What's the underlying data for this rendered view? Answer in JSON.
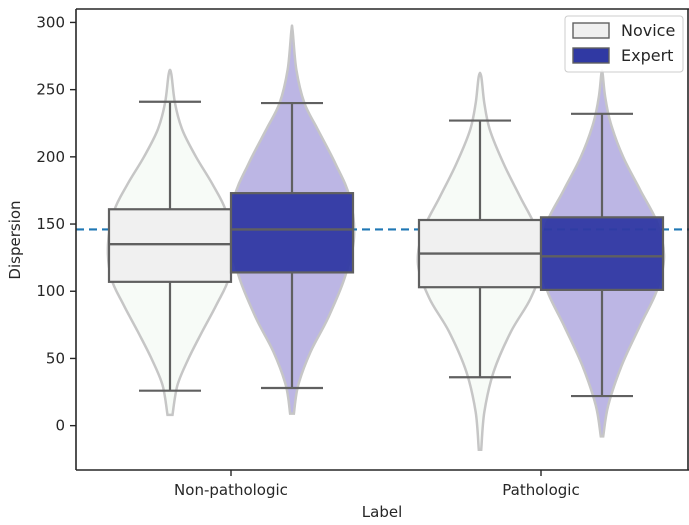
{
  "chart_data": {
    "type": "violin-box",
    "xlabel": "Label",
    "ylabel": "Dispersion",
    "categories": [
      "Non-pathologic",
      "Pathologic"
    ],
    "ylim": [
      -33,
      310
    ],
    "yticks": [
      0,
      50,
      100,
      150,
      200,
      250,
      300
    ],
    "reference_line": {
      "y": 146,
      "style": "dashed",
      "color": "#1f77b4"
    },
    "legend": {
      "position": "top-right",
      "entries": [
        "Novice",
        "Expert"
      ]
    },
    "colors": {
      "Novice_box": "#f0f0f0",
      "Novice_violin": "#f7fbf7",
      "Expert_box": "#3039a3",
      "Expert_violin": "#b8b2e3",
      "box_edge": "#606060",
      "violin_edge": "#c6c6c6"
    },
    "series": [
      {
        "name": "Novice",
        "groups": [
          {
            "category": "Non-pathologic",
            "box": {
              "whisker_low": 26,
              "q1": 107,
              "median": 135,
              "q3": 161,
              "whisker_high": 241
            },
            "violin": {
              "min": 8,
              "max": 262,
              "profile": [
                [
                  8,
                  0.04
                ],
                [
                  30,
                  0.12
                ],
                [
                  50,
                  0.3
                ],
                [
                  70,
                  0.52
                ],
                [
                  90,
                  0.75
                ],
                [
                  110,
                  0.95
                ],
                [
                  135,
                  1.0
                ],
                [
                  160,
                  0.9
                ],
                [
                  180,
                  0.68
                ],
                [
                  200,
                  0.42
                ],
                [
                  220,
                  0.2
                ],
                [
                  240,
                  0.08
                ],
                [
                  262,
                  0.02
                ]
              ]
            }
          },
          {
            "category": "Pathologic",
            "box": {
              "whisker_low": 36,
              "q1": 103,
              "median": 128,
              "q3": 153,
              "whisker_high": 227
            },
            "violin": {
              "min": -18,
              "max": 260,
              "profile": [
                [
                  -18,
                  0.02
                ],
                [
                  10,
                  0.07
                ],
                [
                  40,
                  0.22
                ],
                [
                  70,
                  0.5
                ],
                [
                  95,
                  0.82
                ],
                [
                  120,
                  1.0
                ],
                [
                  145,
                  0.92
                ],
                [
                  170,
                  0.65
                ],
                [
                  195,
                  0.38
                ],
                [
                  220,
                  0.16
                ],
                [
                  240,
                  0.07
                ],
                [
                  260,
                  0.02
                ]
              ]
            }
          }
        ]
      },
      {
        "name": "Expert",
        "groups": [
          {
            "category": "Non-pathologic",
            "box": {
              "whisker_low": 28,
              "q1": 114,
              "median": 146,
              "q3": 173,
              "whisker_high": 240
            },
            "violin": {
              "min": 9,
              "max": 294,
              "profile": [
                [
                  9,
                  0.03
                ],
                [
                  30,
                  0.1
                ],
                [
                  55,
                  0.3
                ],
                [
                  80,
                  0.58
                ],
                [
                  110,
                  0.85
                ],
                [
                  140,
                  1.0
                ],
                [
                  170,
                  0.93
                ],
                [
                  195,
                  0.7
                ],
                [
                  220,
                  0.42
                ],
                [
                  240,
                  0.2
                ],
                [
                  265,
                  0.07
                ],
                [
                  294,
                  0.01
                ]
              ]
            }
          },
          {
            "category": "Pathologic",
            "box": {
              "whisker_low": 22,
              "q1": 101,
              "median": 126,
              "q3": 155,
              "whisker_high": 232
            },
            "violin": {
              "min": -8,
              "max": 262,
              "profile": [
                [
                  -8,
                  0.02
                ],
                [
                  15,
                  0.1
                ],
                [
                  45,
                  0.32
                ],
                [
                  75,
                  0.62
                ],
                [
                  100,
                  0.88
                ],
                [
                  125,
                  1.0
                ],
                [
                  150,
                  0.9
                ],
                [
                  175,
                  0.62
                ],
                [
                  200,
                  0.34
                ],
                [
                  225,
                  0.14
                ],
                [
                  245,
                  0.05
                ],
                [
                  262,
                  0.01
                ]
              ]
            }
          }
        ]
      }
    ]
  }
}
